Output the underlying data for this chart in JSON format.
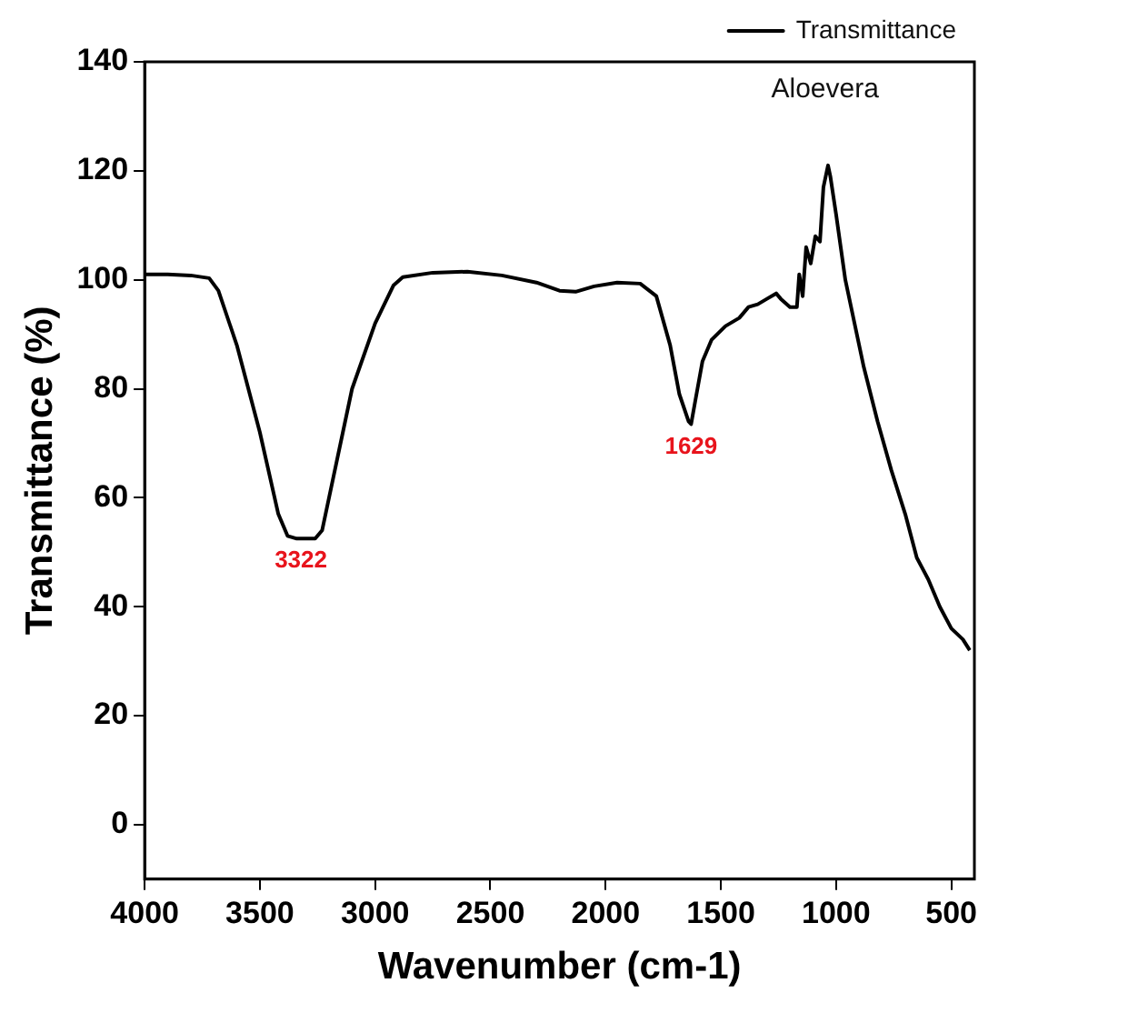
{
  "chart_data": {
    "type": "line",
    "xlabel": "Wavenumber (cm-1)",
    "ylabel": "Transmittance (%)",
    "xlim": [
      4000,
      400
    ],
    "xticks": [
      4000,
      3500,
      3000,
      2500,
      2000,
      1500,
      1000,
      500
    ],
    "ylim": [
      -10,
      140
    ],
    "yticks": [
      0,
      20,
      40,
      60,
      80,
      100,
      120,
      140
    ],
    "grid": false,
    "legend": "top right",
    "marker": "none",
    "line_style": "solid",
    "annotations": [
      "Aloevera",
      {
        "text": "3322",
        "x": 3322,
        "y": 52.5
      },
      {
        "text": "1629",
        "x": 1629,
        "y": 73.5
      }
    ],
    "series": [
      {
        "name": "Transmittance",
        "color": "#000000",
        "x": [
          4000,
          3900,
          3800,
          3720,
          3680,
          3600,
          3500,
          3420,
          3380,
          3340,
          3260,
          3230,
          3180,
          3100,
          3000,
          2920,
          2880,
          2750,
          2600,
          2450,
          2300,
          2200,
          2130,
          2050,
          1950,
          1850,
          1780,
          1720,
          1680,
          1640,
          1629,
          1610,
          1580,
          1540,
          1480,
          1420,
          1380,
          1340,
          1300,
          1260,
          1240,
          1200,
          1170,
          1160,
          1145,
          1130,
          1110,
          1090,
          1070,
          1055,
          1045,
          1035,
          1025,
          1000,
          960,
          920,
          880,
          820,
          760,
          700,
          650,
          600,
          550,
          500,
          450,
          420
        ],
        "values": [
          101,
          101,
          100.8,
          100.3,
          98,
          88,
          72,
          57,
          53,
          52.5,
          52.5,
          54,
          64,
          80,
          92,
          99,
          100.5,
          101.3,
          101.5,
          100.8,
          99.5,
          98,
          97.8,
          98.8,
          99.5,
          99.3,
          97,
          88,
          79,
          74,
          73.5,
          78,
          85,
          89,
          91.5,
          93,
          95,
          95.5,
          96.5,
          97.5,
          96.5,
          95,
          95,
          101,
          97,
          106,
          103,
          108,
          107,
          117,
          119,
          121,
          119,
          112,
          100,
          92,
          84,
          74,
          65,
          57,
          49,
          45,
          40,
          36,
          34,
          32
        ]
      }
    ]
  }
}
